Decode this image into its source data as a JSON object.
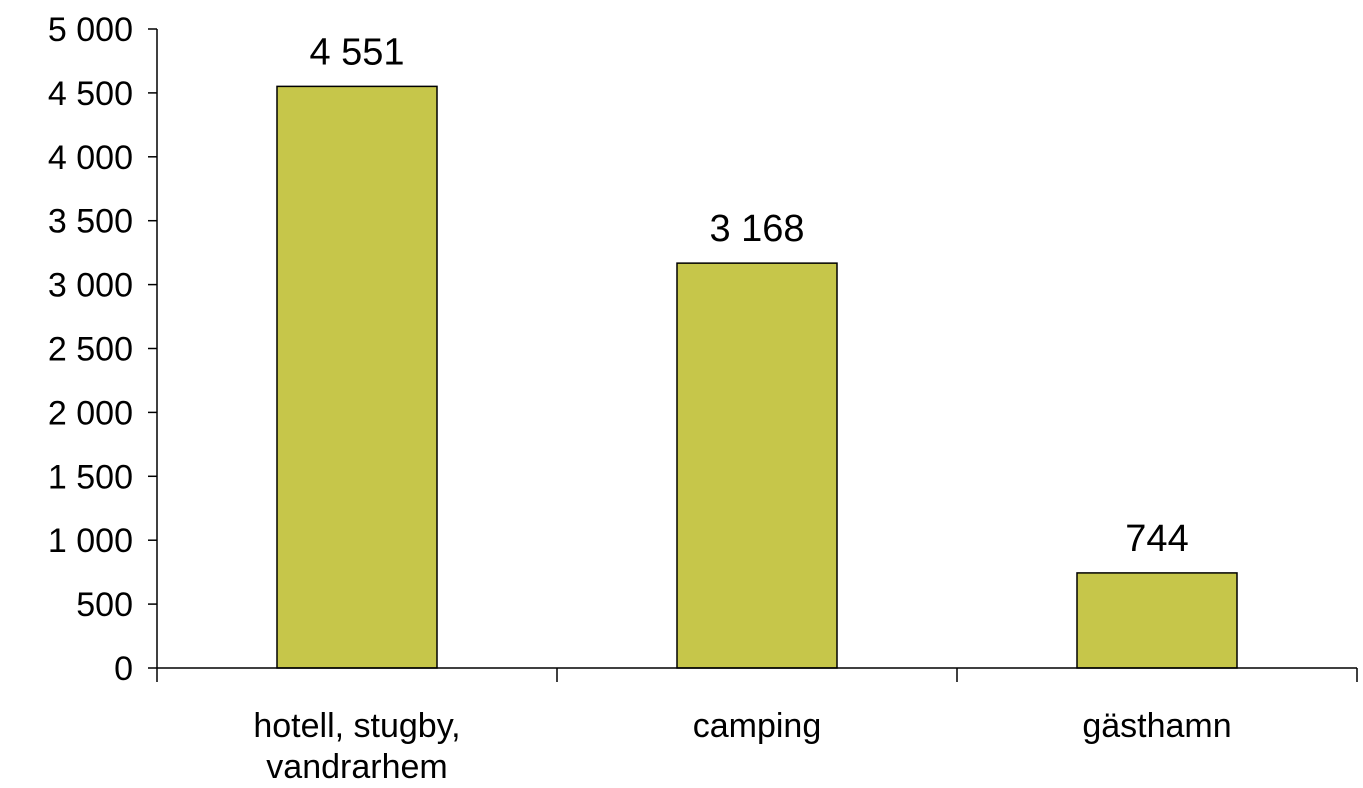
{
  "chart_data": {
    "type": "bar",
    "categories": [
      [
        "hotell, stugby,",
        "vandrarhem"
      ],
      [
        "camping"
      ],
      [
        "gästhamn"
      ]
    ],
    "values": [
      4551,
      3168,
      744
    ],
    "value_labels": [
      "4 551",
      "3 168",
      "744"
    ],
    "ylim": [
      0,
      5000
    ],
    "yticks": [
      0,
      500,
      1000,
      1500,
      2000,
      2500,
      3000,
      3500,
      4000,
      4500,
      5000
    ],
    "ytick_labels": [
      "0",
      "500",
      "1 000",
      "1 500",
      "2 000",
      "2 500",
      "3 000",
      "3 500",
      "4 000",
      "4 500",
      "5 000"
    ],
    "title": "",
    "xlabel": "",
    "ylabel": "",
    "grid": false,
    "bar_color": "#C6C64A",
    "bar_edge_color": "#000000"
  }
}
